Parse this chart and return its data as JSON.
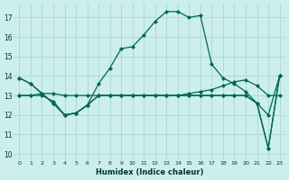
{
  "background_color": "#cceeed",
  "grid_color": "#aad8d2",
  "line_color": "#006655",
  "xlabel": "Humidex (Indice chaleur)",
  "yticks": [
    10,
    11,
    12,
    13,
    14,
    15,
    16,
    17
  ],
  "xticks": [
    0,
    1,
    2,
    3,
    4,
    5,
    6,
    7,
    8,
    9,
    10,
    11,
    12,
    13,
    14,
    15,
    16,
    17,
    18,
    19,
    20,
    21,
    22,
    23
  ],
  "xlim": [
    -0.5,
    23.5
  ],
  "ylim": [
    9.7,
    17.7
  ],
  "lines": [
    {
      "x": [
        0,
        1,
        2,
        3,
        4,
        5,
        6,
        7,
        8,
        9,
        10,
        11,
        12,
        13,
        14,
        15,
        16,
        17,
        18,
        19,
        20,
        21,
        22,
        23
      ],
      "y": [
        13.9,
        13.6,
        13.1,
        12.6,
        12.0,
        12.1,
        12.5,
        13.6,
        14.4,
        15.4,
        15.5,
        16.1,
        16.8,
        17.3,
        17.3,
        17.0,
        17.1,
        14.6,
        13.9,
        13.6,
        13.2,
        12.6,
        12.0,
        14.0
      ]
    },
    {
      "x": [
        0,
        1,
        2,
        3,
        4,
        5,
        6,
        7,
        8,
        9,
        10,
        11,
        12,
        13,
        14,
        15,
        16,
        17,
        18,
        19,
        20,
        21,
        22,
        23
      ],
      "y": [
        13.0,
        13.0,
        13.1,
        13.1,
        13.0,
        13.0,
        13.0,
        13.0,
        13.0,
        13.0,
        13.0,
        13.0,
        13.0,
        13.0,
        13.0,
        13.1,
        13.2,
        13.3,
        13.5,
        13.7,
        13.8,
        13.5,
        13.0,
        13.0
      ]
    },
    {
      "x": [
        0,
        1,
        2,
        3,
        4,
        5,
        6,
        7,
        8,
        9,
        10,
        11,
        12,
        13,
        14,
        15,
        16,
        17,
        18,
        19,
        20,
        21,
        22,
        23
      ],
      "y": [
        13.9,
        13.6,
        13.1,
        12.6,
        12.0,
        12.1,
        12.5,
        13.0,
        13.0,
        13.0,
        13.0,
        13.0,
        13.0,
        13.0,
        13.0,
        13.0,
        13.0,
        13.0,
        13.0,
        13.0,
        13.0,
        12.6,
        10.3,
        14.0
      ]
    },
    {
      "x": [
        0,
        1,
        2,
        3,
        4,
        5,
        6,
        7,
        8,
        9,
        10,
        11,
        12,
        13,
        14,
        15,
        16,
        17,
        18,
        19,
        20,
        21,
        22,
        23
      ],
      "y": [
        13.0,
        13.0,
        13.0,
        12.7,
        12.0,
        12.1,
        12.5,
        13.0,
        13.0,
        13.0,
        13.0,
        13.0,
        13.0,
        13.0,
        13.0,
        13.0,
        13.0,
        13.0,
        13.0,
        13.0,
        13.0,
        12.6,
        10.3,
        14.0
      ]
    }
  ]
}
